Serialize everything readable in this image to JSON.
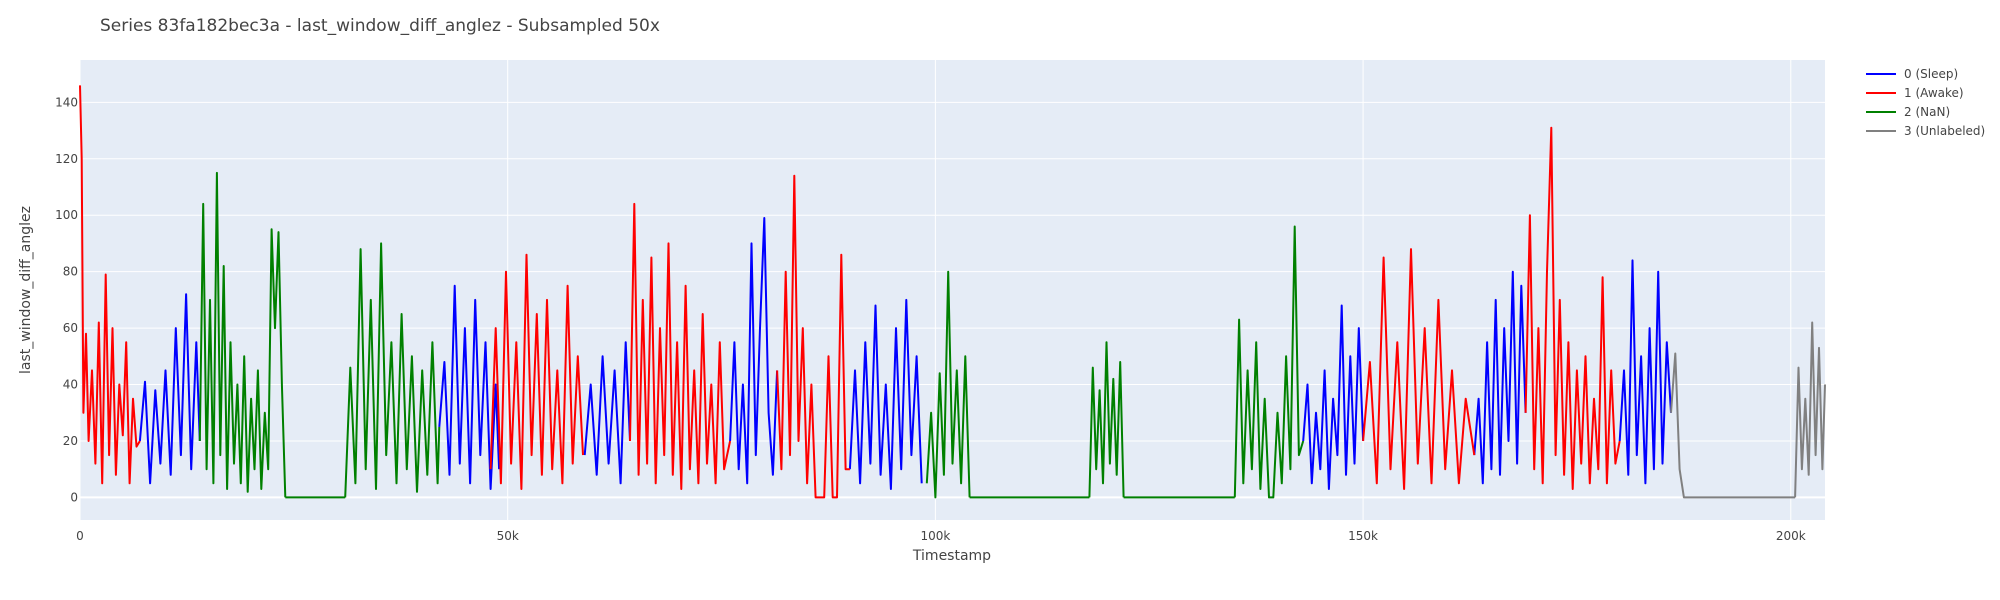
{
  "chart_data": {
    "type": "line",
    "title": "Series 83fa182bec3a - last_window_diff_anglez - Subsampled 50x",
    "xlabel": "Timestamp",
    "ylabel": "last_window_diff_anglez",
    "xlim": [
      0,
      204000
    ],
    "ylim": [
      -8,
      155
    ],
    "x_ticks": [
      0,
      50000,
      100000,
      150000,
      200000
    ],
    "x_tick_labels": [
      "0",
      "50k",
      "100k",
      "150k",
      "200k"
    ],
    "y_ticks": [
      0,
      20,
      40,
      60,
      80,
      100,
      120,
      140
    ],
    "y_tick_labels": [
      "0",
      "20",
      "40",
      "60",
      "80",
      "100",
      "120",
      "140"
    ],
    "grid": true,
    "legend_position": "right",
    "series": [
      {
        "name": "0 (Sleep)",
        "color": "#0000ff",
        "segments": [
          {
            "x": [
              7000,
              7600,
              8200,
              8800,
              9400,
              10000,
              10600,
              11200,
              11800,
              12400,
              13000,
              13600,
              14000
            ],
            "y": [
              20,
              41,
              5,
              38,
              12,
              45,
              8,
              60,
              15,
              72,
              10,
              55,
              20
            ]
          },
          {
            "x": [
              42000,
              42600,
              43200,
              43800,
              44400,
              45000,
              45600,
              46200,
              46800,
              47400,
              48000,
              48600,
              49000
            ],
            "y": [
              25,
              48,
              8,
              75,
              12,
              60,
              5,
              70,
              15,
              55,
              3,
              40,
              10
            ]
          },
          {
            "x": [
              59000,
              59700,
              60400,
              61100,
              61800,
              62500,
              63200,
              63800,
              64300
            ],
            "y": [
              15,
              40,
              8,
              50,
              12,
              45,
              5,
              55,
              20
            ]
          },
          {
            "x": [
              76000,
              76500,
              77000,
              77500,
              78000,
              78500,
              79000,
              79500,
              80000,
              80500,
              81000,
              81500
            ],
            "y": [
              20,
              55,
              10,
              40,
              5,
              90,
              15,
              60,
              99,
              30,
              8,
              45
            ]
          },
          {
            "x": [
              90000,
              90600,
              91200,
              91800,
              92400,
              93000,
              93600,
              94200,
              94800,
              95400,
              96000,
              96600,
              97200,
              97800,
              98400
            ],
            "y": [
              10,
              45,
              5,
              55,
              12,
              68,
              8,
              40,
              3,
              60,
              10,
              70,
              15,
              50,
              5
            ]
          },
          {
            "x": [
              143000,
              143500,
              144000,
              144500,
              145000,
              145500,
              146000,
              146500,
              147000,
              147500,
              148000,
              148500,
              149000,
              149500,
              150000
            ],
            "y": [
              20,
              40,
              5,
              30,
              10,
              45,
              3,
              35,
              15,
              68,
              8,
              50,
              12,
              60,
              20
            ]
          },
          {
            "x": [
              163000,
              163500,
              164000,
              164500,
              165000,
              165500,
              166000,
              166500,
              167000,
              167500,
              168000,
              168500,
              169000
            ],
            "y": [
              15,
              35,
              5,
              55,
              10,
              70,
              8,
              60,
              20,
              80,
              12,
              75,
              30
            ]
          },
          {
            "x": [
              180000,
              180500,
              181000,
              181500,
              182000,
              182500,
              183000,
              183500,
              184000,
              184500,
              185000,
              185500,
              186000
            ],
            "y": [
              20,
              45,
              8,
              84,
              15,
              50,
              5,
              60,
              10,
              80,
              12,
              55,
              30
            ]
          }
        ]
      },
      {
        "name": "1 (Awake)",
        "color": "#ff0000",
        "segments": [
          {
            "x": [
              0,
              200,
              400,
              700,
              1000,
              1400,
              1800,
              2200,
              2600,
              3000,
              3400,
              3800,
              4200,
              4600,
              5000,
              5400,
              5800,
              6200,
              6600,
              7000
            ],
            "y": [
              146,
              120,
              30,
              58,
              20,
              45,
              12,
              62,
              5,
              79,
              15,
              60,
              8,
              40,
              22,
              55,
              5,
              35,
              18,
              20
            ]
          },
          {
            "x": [
              48000,
              48600,
              49200,
              49800,
              50400,
              51000,
              51600,
              52200,
              52800,
              53400,
              54000,
              54600,
              55200,
              55800,
              56400,
              57000,
              57600,
              58200,
              58800
            ],
            "y": [
              10,
              60,
              5,
              80,
              12,
              55,
              3,
              86,
              15,
              65,
              8,
              70,
              10,
              45,
              5,
              75,
              12,
              50,
              15
            ]
          },
          {
            "x": [
              64300,
              64800,
              65300,
              65800,
              66300,
              66800,
              67300,
              67800,
              68300,
              68800,
              69300,
              69800,
              70300,
              70800,
              71300,
              71800,
              72300,
              72800,
              73300,
              73800,
              74300,
              74800,
              75300,
              76000
            ],
            "y": [
              20,
              104,
              8,
              70,
              12,
              85,
              5,
              60,
              15,
              90,
              8,
              55,
              3,
              75,
              10,
              45,
              5,
              65,
              12,
              40,
              5,
              55,
              10,
              20
            ]
          },
          {
            "x": [
              81500,
              82000,
              82500,
              83000,
              83500,
              84000,
              84500,
              85000,
              85500,
              86000,
              86500,
              87000,
              87500,
              88000,
              88500,
              89000,
              89500,
              90000
            ],
            "y": [
              45,
              10,
              80,
              15,
              114,
              20,
              60,
              5,
              40,
              0,
              0,
              0,
              50,
              0,
              0,
              86,
              10,
              10
            ]
          },
          {
            "x": [
              150000,
              150800,
              151600,
              152400,
              153200,
              154000,
              154800,
              155600,
              156400,
              157200,
              158000,
              158800,
              159600,
              160400,
              161200,
              162000,
              163000
            ],
            "y": [
              20,
              48,
              5,
              85,
              10,
              55,
              3,
              88,
              12,
              60,
              5,
              70,
              10,
              45,
              5,
              35,
              15
            ]
          },
          {
            "x": [
              169000,
              169500,
              170000,
              170500,
              171000,
              171500,
              172000,
              172500,
              173000,
              173500,
              174000,
              174500,
              175000,
              175500,
              176000,
              176500,
              177000,
              177500,
              178000,
              178500,
              179000,
              179500,
              180000
            ],
            "y": [
              30,
              100,
              10,
              60,
              5,
              80,
              131,
              15,
              70,
              8,
              55,
              3,
              45,
              12,
              50,
              5,
              35,
              10,
              78,
              5,
              45,
              12,
              20
            ]
          }
        ]
      },
      {
        "name": "2 (NaN)",
        "color": "#008000",
        "segments": [
          {
            "x": [
              14000,
              14400,
              14800,
              15200,
              15600,
              16000,
              16400,
              16800,
              17200,
              17600,
              18000,
              18400,
              18800,
              19200,
              19600,
              20000,
              20400,
              20800,
              21200,
              21600,
              22000,
              22400,
              22800,
              23200,
              23600,
              24000
            ],
            "y": [
              20,
              104,
              10,
              70,
              5,
              115,
              15,
              82,
              3,
              55,
              12,
              40,
              5,
              50,
              2,
              35,
              10,
              45,
              3,
              30,
              10,
              95,
              60,
              94,
              40,
              0
            ]
          },
          {
            "x": [
              24000,
              31000
            ],
            "y": [
              0,
              0
            ]
          },
          {
            "x": [
              31000,
              31600,
              32200,
              32800,
              33400,
              34000,
              34600,
              35200,
              35800,
              36400,
              37000,
              37600,
              38200,
              38800,
              39400,
              40000,
              40600,
              41200,
              41800,
              42000
            ],
            "y": [
              0,
              46,
              5,
              88,
              10,
              70,
              3,
              90,
              15,
              55,
              5,
              65,
              10,
              50,
              2,
              45,
              8,
              55,
              5,
              25
            ]
          },
          {
            "x": [
              99000,
              99500,
              100000,
              100500,
              101000,
              101500,
              102000,
              102500,
              103000,
              103500,
              104000
            ],
            "y": [
              5,
              30,
              0,
              44,
              8,
              80,
              12,
              45,
              5,
              50,
              0
            ]
          },
          {
            "x": [
              104000,
              118000
            ],
            "y": [
              0,
              0
            ]
          },
          {
            "x": [
              118000,
              118400,
              118800,
              119200,
              119600,
              120000,
              120400,
              120800,
              121200,
              121600,
              122000
            ],
            "y": [
              0,
              46,
              10,
              38,
              5,
              55,
              12,
              42,
              8,
              48,
              0
            ]
          },
          {
            "x": [
              122000,
              135000
            ],
            "y": [
              0,
              0
            ]
          },
          {
            "x": [
              135000,
              135500,
              136000,
              136500,
              137000,
              137500,
              138000,
              138500,
              139000,
              139500,
              140000,
              140500,
              141000,
              141500,
              142000,
              142500,
              143000
            ],
            "y": [
              0,
              63,
              5,
              45,
              10,
              55,
              3,
              35,
              0,
              0,
              30,
              5,
              50,
              10,
              96,
              15,
              20
            ]
          }
        ]
      },
      {
        "name": "3 (Unlabeled)",
        "color": "#808080",
        "segments": [
          {
            "x": [
              186000,
              186500,
              187000,
              187500,
              200500
            ],
            "y": [
              30,
              51,
              10,
              0,
              0
            ]
          },
          {
            "x": [
              200500,
              200900,
              201300,
              201700,
              202100,
              202500,
              202900,
              203300,
              203700,
              204000
            ],
            "y": [
              0,
              46,
              10,
              35,
              8,
              62,
              15,
              53,
              10,
              40
            ]
          }
        ]
      }
    ]
  }
}
